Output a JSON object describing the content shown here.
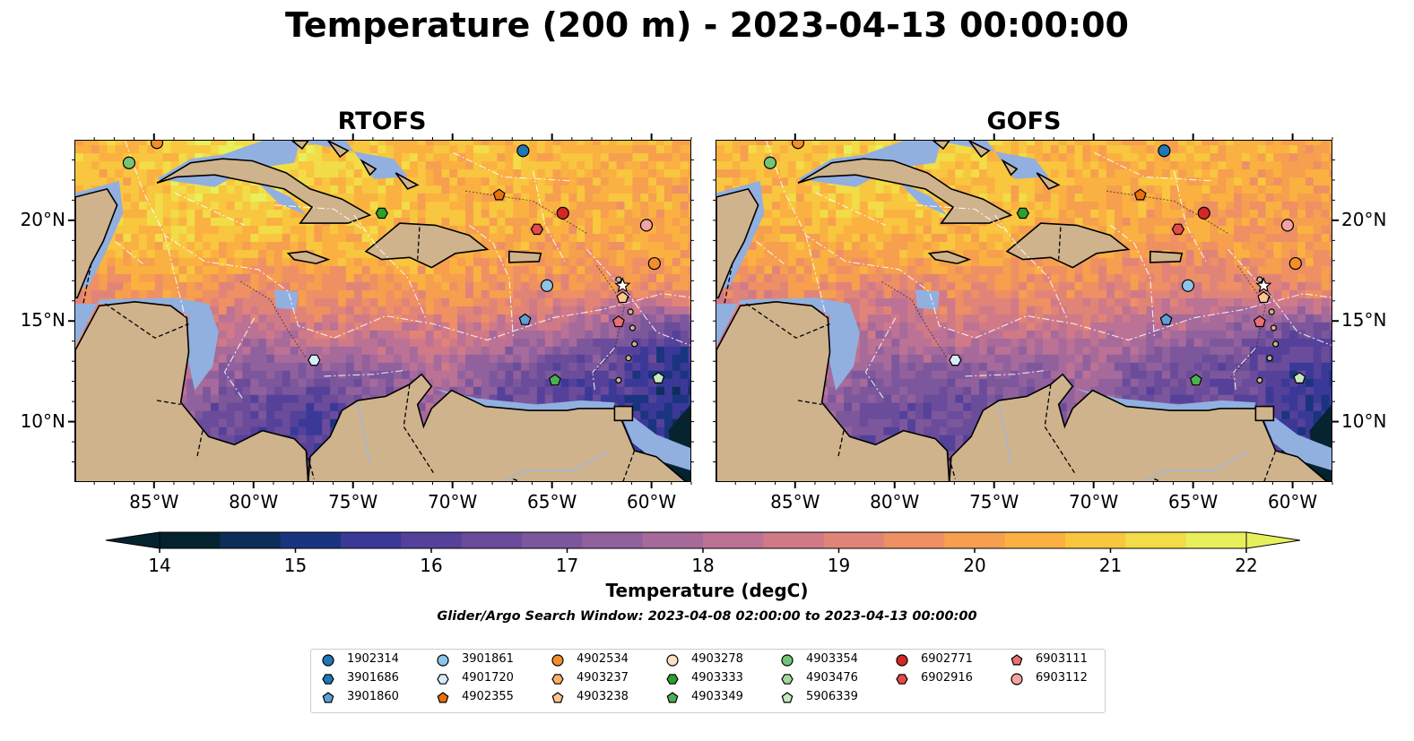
{
  "title": "Temperature (200 m) - 2023-04-13 00:00:00",
  "panels": [
    {
      "title": "RTOFS"
    },
    {
      "title": "GOFS"
    }
  ],
  "axes": {
    "lon_ticks": [
      "85°W",
      "80°W",
      "75°W",
      "70°W",
      "65°W",
      "60°W"
    ],
    "lat_ticks": [
      "20°N",
      "15°N",
      "10°N"
    ],
    "lon_values": [
      -85,
      -80,
      -75,
      -70,
      -65,
      -60
    ],
    "lat_values": [
      20,
      15,
      10
    ],
    "lon_range": [
      -89,
      -58
    ],
    "lat_range": [
      7,
      24
    ]
  },
  "colorbar": {
    "label": "Temperature (degC)",
    "ticks": [
      "14",
      "15",
      "16",
      "17",
      "18",
      "19",
      "20",
      "21",
      "22"
    ],
    "range": [
      14,
      22
    ],
    "extend": "both",
    "colormap": "thermal",
    "colors": [
      "#04232f",
      "#0c2e58",
      "#1a3480",
      "#3a3997",
      "#55419a",
      "#6a4c9b",
      "#7d579c",
      "#91619d",
      "#a66a9b",
      "#bb7294",
      "#d07a88",
      "#e18478",
      "#ee9064",
      "#f69f4e",
      "#fab141",
      "#f8c63f",
      "#f2dc47",
      "#e7f05b"
    ]
  },
  "search_window": "Glider/Argo Search Window: 2023-04-08 02:00:00 to 2023-04-13 00:00:00",
  "legend": {
    "columns": [
      [
        {
          "id": "1902314",
          "marker": "circle",
          "color": "#1f77b4"
        },
        {
          "id": "3901686",
          "marker": "hexagon",
          "color": "#1f77b4"
        },
        {
          "id": "3901860",
          "marker": "pentagon",
          "color": "#5d9fd8"
        }
      ],
      [
        {
          "id": "3901861",
          "marker": "circle",
          "color": "#8ec3ea"
        },
        {
          "id": "4901720",
          "marker": "hexagon",
          "color": "#d6ecfa"
        },
        {
          "id": "4902355",
          "marker": "pentagon",
          "color": "#e8710a"
        }
      ],
      [
        {
          "id": "4902534",
          "marker": "circle",
          "color": "#f28e2b"
        },
        {
          "id": "4903237",
          "marker": "hexagon",
          "color": "#fdae6b"
        },
        {
          "id": "4903238",
          "marker": "pentagon",
          "color": "#fdc590"
        }
      ],
      [
        {
          "id": "4903278",
          "marker": "circle",
          "color": "#fde0c5"
        },
        {
          "id": "4903333",
          "marker": "hexagon",
          "color": "#2ca02c"
        },
        {
          "id": "4903349",
          "marker": "pentagon",
          "color": "#4cb050"
        }
      ],
      [
        {
          "id": "4903354",
          "marker": "circle",
          "color": "#74c476"
        },
        {
          "id": "4903476",
          "marker": "hexagon",
          "color": "#a1d99b"
        },
        {
          "id": "5906339",
          "marker": "pentagon",
          "color": "#c7e9c0"
        }
      ],
      [
        {
          "id": "6902771",
          "marker": "circle",
          "color": "#d62728"
        },
        {
          "id": "6902916",
          "marker": "hexagon",
          "color": "#e34a4a"
        }
      ],
      [
        {
          "id": "6903111",
          "marker": "pentagon",
          "color": "#ea7172"
        },
        {
          "id": "6903112",
          "marker": "circle",
          "color": "#f4a3a4"
        }
      ]
    ]
  },
  "map_colors": {
    "land": "#cfb38c",
    "shallow": "#91b0e0",
    "deep": "#062330",
    "grid": "#ffffff"
  }
}
